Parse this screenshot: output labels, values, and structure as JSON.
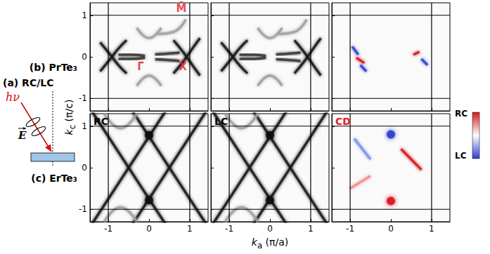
{
  "panel_a": {
    "label": "(a) RC/LC",
    "photon": "hν",
    "field": "E"
  },
  "row_labels": [
    "(b) PrTe₃",
    "(c) ErTe₃"
  ],
  "x_label": {
    "symbol": "k",
    "subscript": "a",
    "unit": "(π/a)"
  },
  "y_label": {
    "symbol": "k",
    "subscript": "c",
    "unit": "(π/c)"
  },
  "colorbar": {
    "colors": [
      "#d7191c",
      "#ffffff",
      "#2c3fd0"
    ],
    "labels": [
      "RC",
      "LC"
    ]
  },
  "chart_data": [
    {
      "type": "line",
      "xlim": [
        -1.45,
        1.45
      ],
      "ylim": [
        -1.3,
        1.3
      ],
      "xticks": [
        -1,
        0,
        1
      ],
      "yticks": [
        -1,
        0,
        1
      ],
      "tick_labels": "y",
      "bz_lines": {
        "x": [
          -1,
          1
        ],
        "y": [
          -1,
          1
        ]
      },
      "symmetry_points": [
        {
          "label": "M̄",
          "x": 1,
          "y": 1,
          "color": "#e0202a"
        },
        {
          "label": "Γ̄",
          "x": 0,
          "y": 0,
          "color": "#e0202a"
        },
        {
          "label": "X̄",
          "x": 1,
          "y": 0,
          "color": "#e0202a"
        }
      ],
      "bands": [
        {
          "color": "#1a1a1a",
          "values": [
            [
              -1.2,
              0.35
            ],
            [
              -0.95,
              0.05
            ],
            [
              -0.75,
              -0.2
            ],
            [
              -0.55,
              -0.4
            ]
          ]
        },
        {
          "color": "#1a1a1a",
          "values": [
            [
              -1.2,
              -0.35
            ],
            [
              -0.95,
              -0.05
            ],
            [
              -0.75,
              0.2
            ],
            [
              -0.55,
              0.4
            ]
          ]
        },
        {
          "color": "#333333",
          "values": [
            [
              -0.75,
              0.05
            ],
            [
              -0.4,
              0.05
            ],
            [
              -0.1,
              0.02
            ]
          ]
        },
        {
          "color": "#333333",
          "values": [
            [
              -0.75,
              -0.05
            ],
            [
              -0.4,
              -0.05
            ],
            [
              -0.1,
              -0.02
            ]
          ]
        },
        {
          "color": "#333333",
          "values": [
            [
              0.15,
              0.06
            ],
            [
              0.5,
              0.08
            ],
            [
              0.75,
              0.1
            ]
          ]
        },
        {
          "color": "#333333",
          "values": [
            [
              0.15,
              -0.06
            ],
            [
              0.5,
              -0.08
            ],
            [
              0.75,
              -0.1
            ]
          ]
        },
        {
          "color": "#1a1a1a",
          "values": [
            [
              0.6,
              0.4
            ],
            [
              0.85,
              0.1
            ],
            [
              1.1,
              -0.25
            ],
            [
              1.25,
              -0.45
            ]
          ]
        },
        {
          "color": "#1a1a1a",
          "values": [
            [
              0.6,
              -0.4
            ],
            [
              0.85,
              -0.1
            ],
            [
              1.1,
              0.25
            ],
            [
              1.25,
              0.45
            ]
          ]
        },
        {
          "color": "#a0a0a0",
          "values": [
            [
              -0.3,
              0.7
            ],
            [
              0,
              0.45
            ],
            [
              0.3,
              0.7
            ]
          ]
        },
        {
          "color": "#a0a0a0",
          "values": [
            [
              -0.3,
              -0.7
            ],
            [
              0,
              -0.45
            ],
            [
              0.3,
              -0.7
            ]
          ]
        },
        {
          "color": "#a0a0a0",
          "values": [
            [
              0.2,
              0.55
            ],
            [
              0.6,
              0.6
            ],
            [
              0.9,
              0.9
            ]
          ]
        }
      ],
      "spots": []
    },
    {
      "type": "line",
      "xlim": [
        -1.45,
        1.45
      ],
      "ylim": [
        -1.3,
        1.3
      ],
      "xticks": [
        -1,
        0,
        1
      ],
      "yticks": [
        -1,
        0,
        1
      ],
      "tick_labels": false,
      "bz_lines": {
        "x": [
          -1,
          1
        ],
        "y": [
          -1,
          1
        ]
      },
      "bands": [
        {
          "color": "#1a1a1a",
          "values": [
            [
              -1.2,
              0.35
            ],
            [
              -0.95,
              0.05
            ],
            [
              -0.75,
              -0.2
            ],
            [
              -0.55,
              -0.4
            ]
          ]
        },
        {
          "color": "#1a1a1a",
          "values": [
            [
              -1.2,
              -0.35
            ],
            [
              -0.95,
              -0.05
            ],
            [
              -0.75,
              0.2
            ],
            [
              -0.55,
              0.4
            ]
          ]
        },
        {
          "color": "#333333",
          "values": [
            [
              -0.75,
              0.05
            ],
            [
              -0.4,
              0.05
            ],
            [
              -0.1,
              0.02
            ]
          ]
        },
        {
          "color": "#333333",
          "values": [
            [
              -0.75,
              -0.05
            ],
            [
              -0.4,
              -0.05
            ],
            [
              -0.1,
              -0.02
            ]
          ]
        },
        {
          "color": "#333333",
          "values": [
            [
              0.15,
              0.06
            ],
            [
              0.5,
              0.08
            ],
            [
              0.75,
              0.1
            ]
          ]
        },
        {
          "color": "#333333",
          "values": [
            [
              0.15,
              -0.06
            ],
            [
              0.5,
              -0.08
            ],
            [
              0.75,
              -0.1
            ]
          ]
        },
        {
          "color": "#1a1a1a",
          "values": [
            [
              0.6,
              0.4
            ],
            [
              0.85,
              0.1
            ],
            [
              1.1,
              -0.25
            ],
            [
              1.25,
              -0.45
            ]
          ]
        },
        {
          "color": "#1a1a1a",
          "values": [
            [
              0.6,
              -0.4
            ],
            [
              0.85,
              -0.1
            ],
            [
              1.1,
              0.25
            ],
            [
              1.25,
              0.45
            ]
          ]
        },
        {
          "color": "#a0a0a0",
          "values": [
            [
              -0.3,
              0.7
            ],
            [
              0,
              0.45
            ],
            [
              0.3,
              0.7
            ]
          ]
        },
        {
          "color": "#a0a0a0",
          "values": [
            [
              -0.3,
              -0.7
            ],
            [
              0,
              -0.45
            ],
            [
              0.3,
              -0.7
            ]
          ]
        },
        {
          "color": "#a0a0a0",
          "values": [
            [
              0.2,
              0.55
            ],
            [
              0.6,
              0.6
            ],
            [
              0.9,
              0.9
            ]
          ]
        }
      ],
      "spots": []
    },
    {
      "type": "line",
      "xlim": [
        -1.45,
        1.45
      ],
      "ylim": [
        -1.3,
        1.3
      ],
      "xticks": [
        -1,
        0,
        1
      ],
      "yticks": [
        -1,
        0,
        1
      ],
      "tick_labels": false,
      "bz_lines": {
        "x": [
          -1,
          1
        ],
        "y": [
          -1,
          1
        ]
      },
      "bands": [
        {
          "color": "#2c3fd0",
          "values": [
            [
              -0.95,
              0.25
            ],
            [
              -0.8,
              0.05
            ]
          ]
        },
        {
          "color": "#d7191c",
          "values": [
            [
              -0.85,
              -0.02
            ],
            [
              -0.65,
              -0.15
            ]
          ]
        },
        {
          "color": "#2c3fd0",
          "values": [
            [
              -0.75,
              -0.2
            ],
            [
              -0.6,
              -0.35
            ]
          ]
        },
        {
          "color": "#d7191c",
          "values": [
            [
              0.55,
              0.05
            ],
            [
              0.7,
              0.12
            ]
          ]
        },
        {
          "color": "#2c3fd0",
          "values": [
            [
              0.75,
              -0.05
            ],
            [
              0.9,
              -0.2
            ]
          ]
        }
      ],
      "spots": []
    },
    {
      "type": "line",
      "xlim": [
        -1.45,
        1.45
      ],
      "ylim": [
        -1.3,
        1.3
      ],
      "xticks": [
        -1,
        0,
        1
      ],
      "yticks": [
        -1,
        0,
        1
      ],
      "tick_labels": true,
      "label": {
        "text": "RC",
        "color": "#000000"
      },
      "bz_lines": {
        "x": [
          -1,
          1
        ],
        "y": [
          -1,
          1
        ]
      },
      "bands": [
        {
          "color": "#1a1a1a",
          "values": [
            [
              -1.4,
              -1.35
            ],
            [
              0.4,
              1.35
            ]
          ]
        },
        {
          "color": "#1a1a1a",
          "values": [
            [
              -0.4,
              1.35
            ],
            [
              1.4,
              -1.35
            ]
          ]
        },
        {
          "color": "#1a1a1a",
          "values": [
            [
              -0.4,
              -1.35
            ],
            [
              1.4,
              1.35
            ]
          ]
        },
        {
          "color": "#1a1a1a",
          "values": [
            [
              -1.4,
              1.35
            ],
            [
              0.4,
              -1.35
            ]
          ]
        },
        {
          "color": "#a0a0a0",
          "values": [
            [
              -1.1,
              1.3
            ],
            [
              -0.7,
              0.95
            ],
            [
              -0.3,
              1.3
            ]
          ]
        },
        {
          "color": "#a0a0a0",
          "values": [
            [
              -1.1,
              -1.3
            ],
            [
              -0.7,
              -0.95
            ],
            [
              -0.3,
              -1.3
            ]
          ]
        }
      ],
      "spots": [
        {
          "color": "#111111",
          "values": [
            [
              0,
              0.78
            ],
            [
              0,
              -0.78
            ]
          ]
        }
      ]
    },
    {
      "type": "line",
      "xlim": [
        -1.45,
        1.45
      ],
      "ylim": [
        -1.3,
        1.3
      ],
      "xticks": [
        -1,
        0,
        1
      ],
      "yticks": [
        -1,
        0,
        1
      ],
      "tick_labels": "x",
      "label": {
        "text": "LC",
        "color": "#000000"
      },
      "bz_lines": {
        "x": [
          -1,
          1
        ],
        "y": [
          -1,
          1
        ]
      },
      "bands": [
        {
          "color": "#1a1a1a",
          "values": [
            [
              -1.4,
              -1.35
            ],
            [
              0.4,
              1.35
            ]
          ]
        },
        {
          "color": "#1a1a1a",
          "values": [
            [
              -0.4,
              1.35
            ],
            [
              1.4,
              -1.35
            ]
          ]
        },
        {
          "color": "#1a1a1a",
          "values": [
            [
              -0.4,
              -1.35
            ],
            [
              1.4,
              1.35
            ]
          ]
        },
        {
          "color": "#1a1a1a",
          "values": [
            [
              -1.4,
              1.35
            ],
            [
              0.4,
              -1.35
            ]
          ]
        },
        {
          "color": "#a0a0a0",
          "values": [
            [
              -1.1,
              1.3
            ],
            [
              -0.7,
              0.95
            ],
            [
              -0.3,
              1.3
            ]
          ]
        },
        {
          "color": "#a0a0a0",
          "values": [
            [
              -1.1,
              -1.3
            ],
            [
              -0.7,
              -0.95
            ],
            [
              -0.3,
              -1.3
            ]
          ]
        }
      ],
      "spots": [
        {
          "color": "#111111",
          "values": [
            [
              0,
              0.78
            ],
            [
              0,
              -0.78
            ]
          ]
        }
      ]
    },
    {
      "type": "line",
      "xlim": [
        -1.45,
        1.45
      ],
      "ylim": [
        -1.3,
        1.3
      ],
      "xticks": [
        -1,
        0,
        1
      ],
      "yticks": [
        -1,
        0,
        1
      ],
      "tick_labels": "x",
      "label": {
        "text": "CD",
        "color": "#e0202a"
      },
      "bz_lines": {
        "x": [
          -1,
          1
        ],
        "y": [
          -1,
          1
        ]
      },
      "bands": [
        {
          "color": "#d7191c",
          "values": [
            [
              0.25,
              0.45
            ],
            [
              0.75,
              -0.05
            ]
          ]
        },
        {
          "color": "#7f8fe6",
          "values": [
            [
              -0.9,
              0.7
            ],
            [
              -0.5,
              0.2
            ]
          ]
        },
        {
          "color": "#ee8f8f",
          "values": [
            [
              -1.0,
              -0.5
            ],
            [
              -0.5,
              -0.2
            ]
          ]
        }
      ],
      "spots": [
        {
          "color": "#2c3fd0",
          "values": [
            [
              0,
              0.8
            ]
          ]
        },
        {
          "color": "#d7191c",
          "values": [
            [
              0,
              -0.8
            ]
          ]
        }
      ]
    }
  ]
}
